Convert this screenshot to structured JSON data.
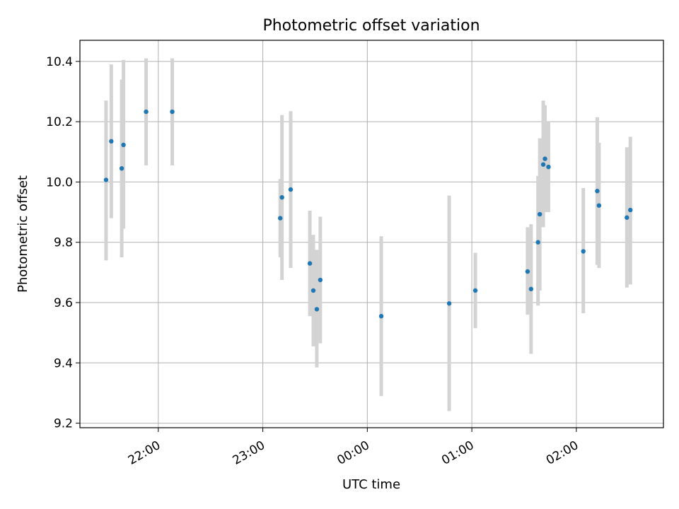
{
  "chart_data": {
    "type": "scatter",
    "title": "Photometric offset variation",
    "xlabel": "UTC time",
    "ylabel": "Photometric offset",
    "x_start": "21:15",
    "x_end": "02:50",
    "ylim": [
      9.185,
      10.47
    ],
    "x_ticks": [
      "22:00",
      "23:00",
      "00:00",
      "01:00",
      "02:00"
    ],
    "y_ticks": [
      "9.2",
      "9.4",
      "9.6",
      "9.8",
      "10.0",
      "10.2",
      "10.4"
    ],
    "grid": true,
    "colors": {
      "point": "#1f77b4",
      "errorbar": "#d3d3d3",
      "grid": "#b0b0b0"
    },
    "points": [
      {
        "x": "21:30",
        "y": 10.007,
        "lo": 9.74,
        "hi": 10.27
      },
      {
        "x": "21:33",
        "y": 10.135,
        "lo": 9.88,
        "hi": 10.39
      },
      {
        "x": "21:39",
        "y": 10.045,
        "lo": 9.75,
        "hi": 10.34
      },
      {
        "x": "21:40",
        "y": 10.123,
        "lo": 9.845,
        "hi": 10.405
      },
      {
        "x": "21:53",
        "y": 10.233,
        "lo": 10.055,
        "hi": 10.41
      },
      {
        "x": "22:08",
        "y": 10.233,
        "lo": 10.055,
        "hi": 10.41
      },
      {
        "x": "23:10",
        "y": 9.88,
        "lo": 9.75,
        "hi": 10.01
      },
      {
        "x": "23:11",
        "y": 9.949,
        "lo": 9.675,
        "hi": 10.222
      },
      {
        "x": "23:16",
        "y": 9.975,
        "lo": 9.715,
        "hi": 10.235
      },
      {
        "x": "23:27",
        "y": 9.73,
        "lo": 9.555,
        "hi": 9.905
      },
      {
        "x": "23:29",
        "y": 9.64,
        "lo": 9.455,
        "hi": 9.825
      },
      {
        "x": "23:31",
        "y": 9.578,
        "lo": 9.385,
        "hi": 9.775
      },
      {
        "x": "23:33",
        "y": 9.675,
        "lo": 9.465,
        "hi": 9.885
      },
      {
        "x": "00:08",
        "y": 9.555,
        "lo": 9.29,
        "hi": 9.82
      },
      {
        "x": "00:47",
        "y": 9.597,
        "lo": 9.24,
        "hi": 9.955
      },
      {
        "x": "01:02",
        "y": 9.64,
        "lo": 9.515,
        "hi": 9.765
      },
      {
        "x": "01:32",
        "y": 9.703,
        "lo": 9.56,
        "hi": 9.85
      },
      {
        "x": "01:34",
        "y": 9.645,
        "lo": 9.43,
        "hi": 9.86
      },
      {
        "x": "01:38",
        "y": 9.8,
        "lo": 9.59,
        "hi": 10.02
      },
      {
        "x": "01:39",
        "y": 9.893,
        "lo": 9.64,
        "hi": 10.145
      },
      {
        "x": "01:41",
        "y": 10.058,
        "lo": 9.85,
        "hi": 10.27
      },
      {
        "x": "01:42",
        "y": 10.077,
        "lo": 9.9,
        "hi": 10.255
      },
      {
        "x": "01:44",
        "y": 10.05,
        "lo": 9.9,
        "hi": 10.2
      },
      {
        "x": "02:04",
        "y": 9.77,
        "lo": 9.565,
        "hi": 9.98
      },
      {
        "x": "02:12",
        "y": 9.97,
        "lo": 9.725,
        "hi": 10.215
      },
      {
        "x": "02:13",
        "y": 9.922,
        "lo": 9.715,
        "hi": 10.13
      },
      {
        "x": "02:29",
        "y": 9.882,
        "lo": 9.65,
        "hi": 10.115
      },
      {
        "x": "02:31",
        "y": 9.907,
        "lo": 9.66,
        "hi": 10.15
      }
    ]
  }
}
